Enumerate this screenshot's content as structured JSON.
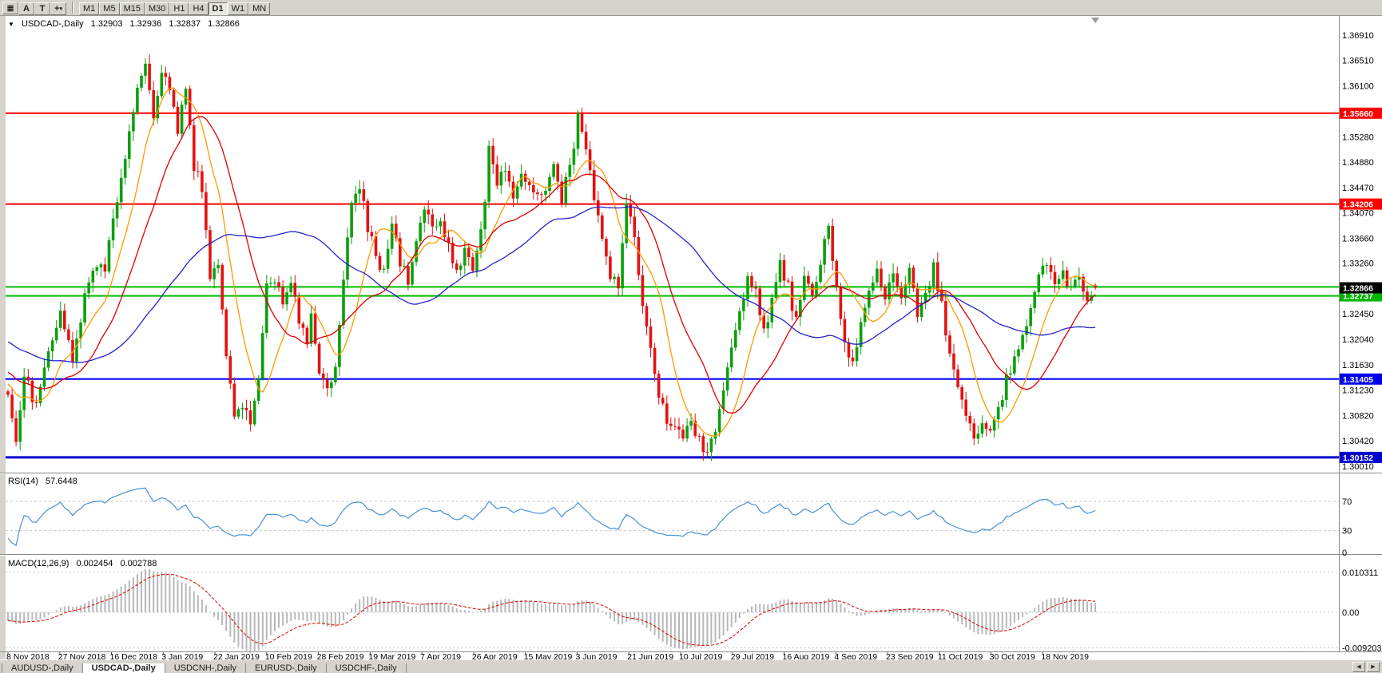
{
  "colors": {
    "toolbar_bg": "#d6d3ce",
    "chart_bg": "#ffffff",
    "candle_up": "#0ba00b",
    "candle_down": "#e31212",
    "ma_fast": "#ff9900",
    "ma_mid": "#dd0000",
    "ma_slow": "#2323cc",
    "rsi_line": "#4a90d9",
    "macd_hist": "#b8b8b8",
    "macd_signal": "#dd0000"
  },
  "toolbar": {
    "tools": [
      {
        "name": "chart-type-icon",
        "glyph": "≣"
      },
      {
        "name": "cursor-tool-icon",
        "glyph": "A"
      },
      {
        "name": "text-tool-icon",
        "glyph": "T"
      },
      {
        "name": "crosshair-tool-icon",
        "glyph": "+",
        "dropdown": "▾"
      }
    ],
    "timeframes": [
      {
        "label": "M1"
      },
      {
        "label": "M5"
      },
      {
        "label": "M15"
      },
      {
        "label": "M30"
      },
      {
        "label": "H1"
      },
      {
        "label": "H4"
      },
      {
        "label": "D1",
        "active": true
      },
      {
        "label": "W1"
      },
      {
        "label": "MN"
      }
    ]
  },
  "main_header": {
    "marker": "▼",
    "symbol": "USDCAD-,Daily",
    "open": "1.32903",
    "high": "1.32936",
    "low": "1.32837",
    "close": "1.32866"
  },
  "price_axis": {
    "labels": [
      "1.36910",
      "1.36510",
      "1.36100",
      "1.35690",
      "1.35280",
      "1.34880",
      "1.34470",
      "1.34070",
      "1.33660",
      "1.33260",
      "1.32860",
      "1.32450",
      "1.32040",
      "1.31630",
      "1.31230",
      "1.30820",
      "1.30420",
      "1.30010"
    ]
  },
  "chart_lines": [
    {
      "price": 1.3566,
      "color": "#ff0000",
      "width": 2
    },
    {
      "price": 1.34206,
      "color": "#ff0000",
      "width": 2
    },
    {
      "price": 1.3288,
      "color": "#00bb00",
      "width": 2
    },
    {
      "price": 1.32737,
      "color": "#00bb00",
      "width": 2
    },
    {
      "price": 1.31405,
      "color": "#0000ff",
      "width": 2
    },
    {
      "price": 1.30152,
      "color": "#0000cc",
      "width": 3
    }
  ],
  "badges": [
    {
      "value": "1.35660",
      "price": 1.3566,
      "color": "#ff0000"
    },
    {
      "value": "1.34206",
      "price": 1.34206,
      "color": "#ff0000"
    },
    {
      "value": "1.32737",
      "price": 1.32737,
      "color": "#00b400"
    },
    {
      "value": "1.32866",
      "price": 1.32866,
      "color": "#000000"
    },
    {
      "value": "1.31405",
      "price": 1.31405,
      "color": "#0000e6"
    },
    {
      "value": "1.30152",
      "price": 1.30152,
      "color": "#0000cc"
    }
  ],
  "rsi": {
    "header_label": "RSI(14)",
    "header_value": "57.6448",
    "levels": [
      "70",
      "30",
      "0"
    ]
  },
  "macd": {
    "header_label": "MACD(12,26,9)",
    "value_main": "0.002454",
    "value_signal": "0.002788",
    "axis_labels": [
      "0.010311",
      "0.00",
      "-0.009203"
    ]
  },
  "date_axis": [
    "8 Nov 2018",
    "27 Nov 2018",
    "16 Dec 2018",
    "3 Jan 2019",
    "22 Jan 2019",
    "10 Feb 2019",
    "28 Feb 2019",
    "19 Mar 2019",
    "7 Apr 2019",
    "26 Apr 2019",
    "15 May 2019",
    "3 Jun 2019",
    "21 Jun 2019",
    "10 Jul 2019",
    "29 Jul 2019",
    "16 Aug 2019",
    "4 Sep 2019",
    "23 Sep 2019",
    "11 Oct 2019",
    "30 Oct 2019",
    "18 Nov 2019"
  ],
  "tabs": [
    {
      "label": "AUDUSD-,Daily"
    },
    {
      "label": "USDCAD-,Daily",
      "active": true
    },
    {
      "label": "USDCNH-,Daily"
    },
    {
      "label": "EURUSD-,Daily"
    },
    {
      "label": "USDCHF-,Daily"
    }
  ],
  "tab_scroll": {
    "left": "◀",
    "right": "▶"
  },
  "chart_data": {
    "type": "candlestick",
    "symbol": "USDCAD",
    "timeframe": "Daily",
    "bars": 270,
    "last_ohlc": {
      "open": 1.32903,
      "high": 1.32936,
      "low": 1.32837,
      "close": 1.32866
    },
    "price_range": [
      1.3001,
      1.3691
    ],
    "date_range": [
      "8 Nov 2018",
      "28 Nov 2019"
    ],
    "horizontal_levels": [
      1.3566,
      1.34206,
      1.3288,
      1.32737,
      1.31405,
      1.30152
    ],
    "indicators": {
      "moving_averages": [
        {
          "period": 10,
          "color": "#ff9900"
        },
        {
          "period": 21,
          "color": "#dd0000"
        },
        {
          "period": 52,
          "color": "#2323cc"
        }
      ],
      "rsi": {
        "period": 14,
        "last": 57.6448
      },
      "macd": {
        "fast": 12,
        "slow": 26,
        "signal": 9,
        "last_main": 0.002454,
        "last_signal": 0.002788
      }
    },
    "close_anchors": [
      [
        0,
        1.312
      ],
      [
        2,
        1.3048
      ],
      [
        4,
        1.315
      ],
      [
        7,
        1.3095
      ],
      [
        10,
        1.3195
      ],
      [
        13,
        1.3245
      ],
      [
        16,
        1.317
      ],
      [
        19,
        1.327
      ],
      [
        22,
        1.333
      ],
      [
        24,
        1.331
      ],
      [
        26,
        1.34
      ],
      [
        29,
        1.35
      ],
      [
        32,
        1.361
      ],
      [
        34,
        1.3655
      ],
      [
        36,
        1.356
      ],
      [
        38,
        1.364
      ],
      [
        40,
        1.3595
      ],
      [
        42,
        1.354
      ],
      [
        44,
        1.3615
      ],
      [
        46,
        1.348
      ],
      [
        48,
        1.3445
      ],
      [
        50,
        1.331
      ],
      [
        52,
        1.333
      ],
      [
        54,
        1.317
      ],
      [
        56,
        1.3075
      ],
      [
        58,
        1.3105
      ],
      [
        60,
        1.3068
      ],
      [
        62,
        1.315
      ],
      [
        64,
        1.329
      ],
      [
        66,
        1.33
      ],
      [
        68,
        1.3265
      ],
      [
        70,
        1.3305
      ],
      [
        72,
        1.324
      ],
      [
        74,
        1.319
      ],
      [
        75,
        1.325
      ],
      [
        77,
        1.315
      ],
      [
        79,
        1.313
      ],
      [
        81,
        1.316
      ],
      [
        83,
        1.331
      ],
      [
        85,
        1.343
      ],
      [
        87,
        1.345
      ],
      [
        89,
        1.338
      ],
      [
        91,
        1.334
      ],
      [
        93,
        1.331
      ],
      [
        95,
        1.3385
      ],
      [
        97,
        1.333
      ],
      [
        99,
        1.3295
      ],
      [
        101,
        1.336
      ],
      [
        103,
        1.342
      ],
      [
        105,
        1.338
      ],
      [
        107,
        1.339
      ],
      [
        109,
        1.335
      ],
      [
        111,
        1.331
      ],
      [
        113,
        1.335
      ],
      [
        115,
        1.332
      ],
      [
        117,
        1.338
      ],
      [
        118,
        1.342
      ],
      [
        119,
        1.352
      ],
      [
        121,
        1.345
      ],
      [
        123,
        1.348
      ],
      [
        125,
        1.344
      ],
      [
        127,
        1.347
      ],
      [
        129,
        1.346
      ],
      [
        131,
        1.343
      ],
      [
        133,
        1.345
      ],
      [
        135,
        1.348
      ],
      [
        137,
        1.343
      ],
      [
        139,
        1.348
      ],
      [
        141,
        1.356
      ],
      [
        143,
        1.3505
      ],
      [
        145,
        1.343
      ],
      [
        147,
        1.336
      ],
      [
        149,
        1.331
      ],
      [
        151,
        1.329
      ],
      [
        153,
        1.342
      ],
      [
        155,
        1.337
      ],
      [
        157,
        1.325
      ],
      [
        159,
        1.318
      ],
      [
        161,
        1.312
      ],
      [
        163,
        1.308
      ],
      [
        165,
        1.3065
      ],
      [
        167,
        1.304
      ],
      [
        169,
        1.307
      ],
      [
        171,
        1.304
      ],
      [
        173,
        1.302
      ],
      [
        175,
        1.306
      ],
      [
        177,
        1.312
      ],
      [
        179,
        1.319
      ],
      [
        181,
        1.324
      ],
      [
        183,
        1.331
      ],
      [
        185,
        1.328
      ],
      [
        187,
        1.322
      ],
      [
        189,
        1.326
      ],
      [
        191,
        1.332
      ],
      [
        193,
        1.329
      ],
      [
        195,
        1.323
      ],
      [
        197,
        1.33
      ],
      [
        199,
        1.327
      ],
      [
        201,
        1.333
      ],
      [
        203,
        1.338
      ],
      [
        205,
        1.329
      ],
      [
        207,
        1.32
      ],
      [
        209,
        1.3165
      ],
      [
        211,
        1.323
      ],
      [
        213,
        1.329
      ],
      [
        215,
        1.331
      ],
      [
        217,
        1.327
      ],
      [
        219,
        1.33
      ],
      [
        221,
        1.327
      ],
      [
        223,
        1.331
      ],
      [
        225,
        1.325
      ],
      [
        227,
        1.328
      ],
      [
        229,
        1.332
      ],
      [
        231,
        1.326
      ],
      [
        233,
        1.318
      ],
      [
        235,
        1.313
      ],
      [
        237,
        1.308
      ],
      [
        239,
        1.3045
      ],
      [
        241,
        1.307
      ],
      [
        243,
        1.306
      ],
      [
        245,
        1.309
      ],
      [
        247,
        1.314
      ],
      [
        249,
        1.317
      ],
      [
        251,
        1.322
      ],
      [
        253,
        1.325
      ],
      [
        255,
        1.33
      ],
      [
        257,
        1.333
      ],
      [
        259,
        1.329
      ],
      [
        261,
        1.331
      ],
      [
        263,
        1.328
      ],
      [
        265,
        1.33
      ],
      [
        267,
        1.327
      ],
      [
        269,
        1.32866
      ]
    ]
  }
}
